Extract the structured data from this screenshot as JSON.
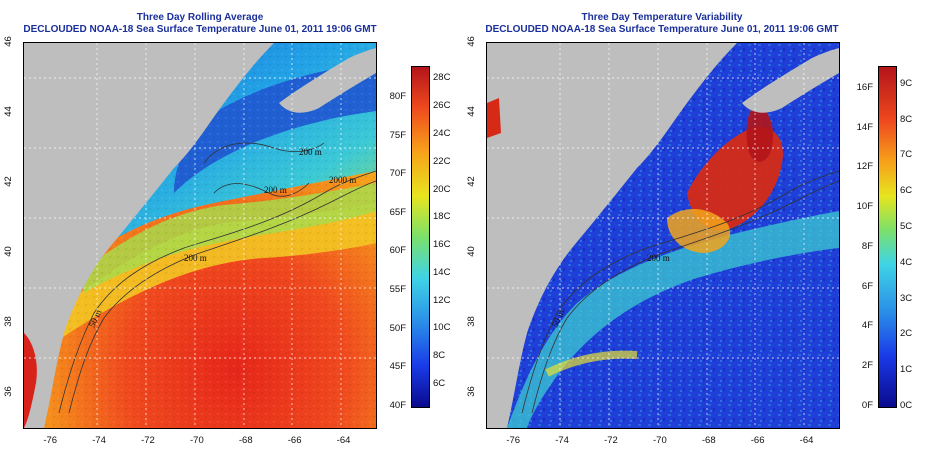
{
  "left_panel": {
    "title": "Three Day Rolling Average",
    "subtitle": "DECLOUDED NOAA-18 Sea Surface Temperature June 01, 2011 19:06 GMT",
    "colorbar": {
      "celsius_labels": [
        "28C",
        "26C",
        "24C",
        "22C",
        "20C",
        "18C",
        "16C",
        "14C",
        "12C",
        "10C",
        "8C",
        "6C"
      ],
      "celsius_values": [
        28,
        26,
        24,
        22,
        20,
        18,
        16,
        14,
        12,
        10,
        8,
        6
      ],
      "c_range": [
        4.4,
        28.9
      ],
      "fahrenheit_labels": [
        "80F",
        "75F",
        "70F",
        "65F",
        "60F",
        "55F",
        "50F",
        "45F",
        "40F"
      ],
      "fahrenheit_values": [
        80,
        75,
        70,
        65,
        60,
        55,
        50,
        45,
        40
      ],
      "f_range": [
        40,
        84
      ]
    },
    "contour_labels": [
      "200 m",
      "2000 m",
      "200 m",
      "200 m",
      "50 m"
    ]
  },
  "right_panel": {
    "title": "Three Day Temperature Variability",
    "subtitle": "DECLOUDED NOAA-18 Sea Surface Temperature June 01, 2011 19:06 GMT",
    "colorbar": {
      "celsius_labels": [
        "9C",
        "8C",
        "7C",
        "6C",
        "5C",
        "4C",
        "3C",
        "2C",
        "1C",
        "0C"
      ],
      "celsius_values": [
        9,
        8,
        7,
        6,
        5,
        4,
        3,
        2,
        1,
        0
      ],
      "c_range": [
        0,
        9.5
      ],
      "fahrenheit_labels": [
        "16F",
        "14F",
        "12F",
        "10F",
        "8F",
        "6F",
        "4F",
        "2F",
        "0F"
      ],
      "fahrenheit_values": [
        16,
        14,
        12,
        10,
        8,
        6,
        4,
        2,
        0
      ],
      "f_range": [
        0,
        17.1
      ]
    },
    "contour_labels": [
      "200 m",
      "50 m"
    ]
  },
  "axes": {
    "lon_labels": [
      "-76",
      "-74",
      "-72",
      "-70",
      "-68",
      "-66",
      "-64"
    ],
    "lon_values": [
      -76,
      -74,
      -72,
      -70,
      -68,
      -66,
      -64
    ],
    "lon_range": [
      -77.2,
      -62.8
    ],
    "lat_labels": [
      "36",
      "38",
      "40",
      "42",
      "44",
      "46"
    ],
    "lat_values": [
      36,
      38,
      40,
      42,
      44,
      46
    ],
    "lat_range": [
      35.0,
      46.0
    ]
  },
  "colors": {
    "land": "#bebebe",
    "title": "#1a2f9a",
    "grid": "#ffffff",
    "contour": "#333333"
  }
}
